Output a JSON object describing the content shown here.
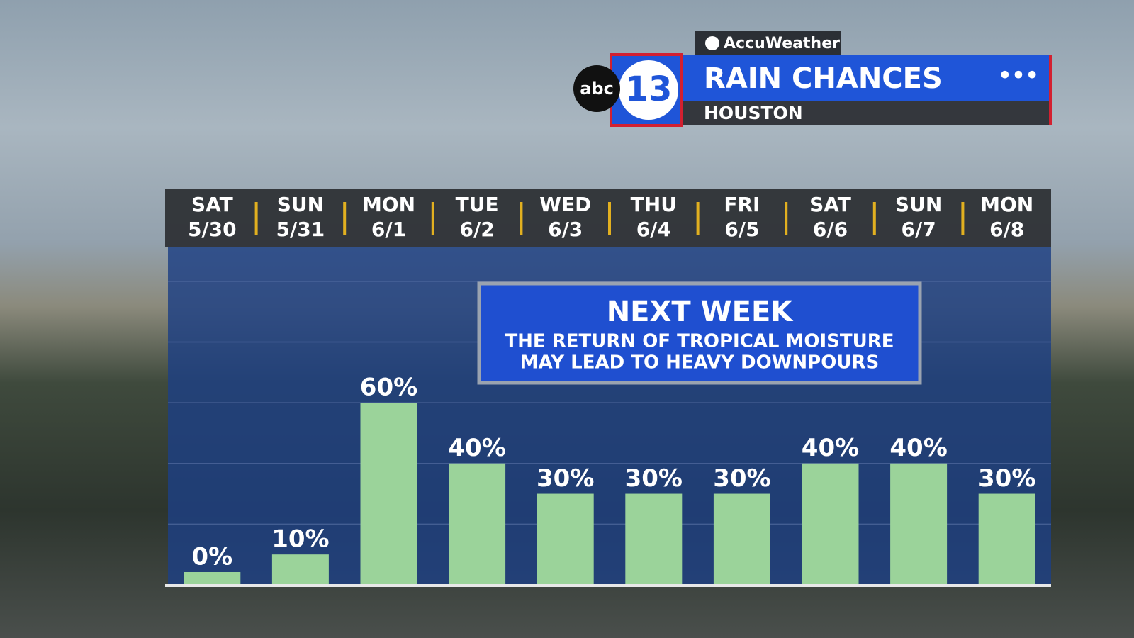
{
  "brand": "AccuWeather",
  "logo": {
    "network": "abc",
    "channel": "13"
  },
  "header": {
    "title": "RAIN CHANCES",
    "location": "HOUSTON"
  },
  "chart_data": {
    "type": "bar",
    "categories": [
      {
        "day": "SAT",
        "date": "5/30"
      },
      {
        "day": "SUN",
        "date": "5/31"
      },
      {
        "day": "MON",
        "date": "6/1"
      },
      {
        "day": "TUE",
        "date": "6/2"
      },
      {
        "day": "WED",
        "date": "6/3"
      },
      {
        "day": "THU",
        "date": "6/4"
      },
      {
        "day": "FRI",
        "date": "6/5"
      },
      {
        "day": "SAT",
        "date": "6/6"
      },
      {
        "day": "SUN",
        "date": "6/7"
      },
      {
        "day": "MON",
        "date": "6/8"
      }
    ],
    "values": [
      0,
      10,
      60,
      40,
      30,
      30,
      30,
      40,
      40,
      30
    ],
    "value_labels": [
      "0%",
      "10%",
      "60%",
      "40%",
      "30%",
      "30%",
      "30%",
      "40%",
      "40%",
      "30%"
    ],
    "color": "#9bd39a",
    "ylim": [
      0,
      110
    ],
    "yticks": [
      20,
      40,
      60,
      80,
      100
    ],
    "grid": true,
    "annotation": {
      "title": "NEXT WEEK",
      "lines": [
        "THE RETURN OF TROPICAL MOISTURE",
        "MAY LEAD TO HEAVY DOWNPOURS"
      ]
    }
  }
}
